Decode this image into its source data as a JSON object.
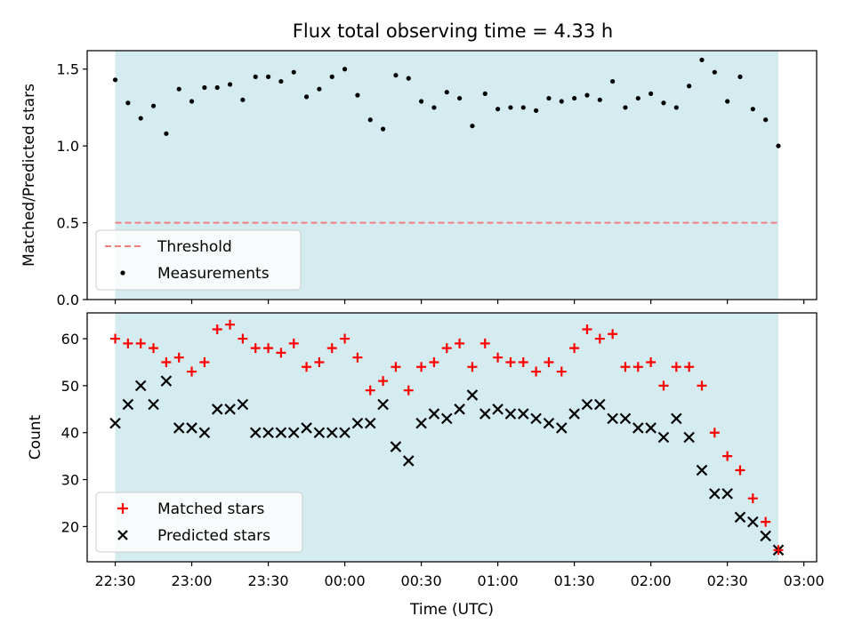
{
  "colors": {
    "shade": "#d4ebf0",
    "threshold": "#f08080",
    "measurement": "#000000",
    "matched": "#ff0000",
    "predicted": "#000000"
  },
  "chart_data": [
    {
      "type": "scatter",
      "title": "Flux total observing time = 4.33 h",
      "xlabel": "",
      "ylabel": "Matched/Predicted stars",
      "xlim": [
        "22:19",
        "03:05"
      ],
      "ylim": [
        0,
        1.62
      ],
      "yticks": [
        "0.0",
        "0.5",
        "1.0",
        "1.5"
      ],
      "shaded_x": [
        "22:30",
        "02:50"
      ],
      "legend": {
        "placement": "lower-left",
        "threshold_label": "Threshold",
        "measurements_label": "Measurements"
      },
      "threshold": {
        "name": "Threshold",
        "value": 0.5,
        "x": [
          "22:30",
          "02:50"
        ],
        "style": "dashed"
      },
      "series": [
        {
          "name": "Measurements",
          "x": [
            "22:30",
            "22:35",
            "22:40",
            "22:45",
            "22:50",
            "22:55",
            "23:00",
            "23:05",
            "23:10",
            "23:15",
            "23:20",
            "23:25",
            "23:30",
            "23:35",
            "23:40",
            "23:45",
            "23:50",
            "23:55",
            "00:00",
            "00:05",
            "00:10",
            "00:15",
            "00:20",
            "00:25",
            "00:30",
            "00:35",
            "00:40",
            "00:45",
            "00:50",
            "00:55",
            "01:00",
            "01:05",
            "01:10",
            "01:15",
            "01:20",
            "01:25",
            "01:30",
            "01:35",
            "01:40",
            "01:45",
            "01:50",
            "01:55",
            "02:00",
            "02:05",
            "02:10",
            "02:15",
            "02:20",
            "02:25",
            "02:30",
            "02:35",
            "02:40",
            "02:45",
            "02:50"
          ],
          "values": [
            1.43,
            1.28,
            1.18,
            1.26,
            1.08,
            1.37,
            1.29,
            1.38,
            1.38,
            1.4,
            1.3,
            1.45,
            1.45,
            1.42,
            1.48,
            1.32,
            1.37,
            1.45,
            1.5,
            1.33,
            1.17,
            1.11,
            1.46,
            1.44,
            1.29,
            1.25,
            1.35,
            1.31,
            1.13,
            1.34,
            1.24,
            1.25,
            1.25,
            1.23,
            1.31,
            1.29,
            1.31,
            1.33,
            1.3,
            1.42,
            1.25,
            1.31,
            1.34,
            1.28,
            1.25,
            1.39,
            1.56,
            1.48,
            1.29,
            1.45,
            1.24,
            1.17,
            1.0
          ]
        }
      ]
    },
    {
      "type": "scatter",
      "xlabel": "Time (UTC)",
      "ylabel": "Count",
      "xlim": [
        "22:19",
        "03:05"
      ],
      "ylim": [
        12.5,
        65.5
      ],
      "yticks": [
        "20",
        "30",
        "40",
        "50",
        "60"
      ],
      "xticks": [
        "22:30",
        "23:00",
        "23:30",
        "00:00",
        "00:30",
        "01:00",
        "01:30",
        "02:00",
        "02:30",
        "03:00"
      ],
      "shaded_x": [
        "22:30",
        "02:50"
      ],
      "legend": {
        "placement": "lower-left",
        "matched_label": "Matched stars",
        "predicted_label": "Predicted stars"
      },
      "x": [
        "22:30",
        "22:35",
        "22:40",
        "22:45",
        "22:50",
        "22:55",
        "23:00",
        "23:05",
        "23:10",
        "23:15",
        "23:20",
        "23:25",
        "23:30",
        "23:35",
        "23:40",
        "23:45",
        "23:50",
        "23:55",
        "00:00",
        "00:05",
        "00:10",
        "00:15",
        "00:20",
        "00:25",
        "00:30",
        "00:35",
        "00:40",
        "00:45",
        "00:50",
        "00:55",
        "01:00",
        "01:05",
        "01:10",
        "01:15",
        "01:20",
        "01:25",
        "01:30",
        "01:35",
        "01:40",
        "01:45",
        "01:50",
        "01:55",
        "02:00",
        "02:05",
        "02:10",
        "02:15",
        "02:20",
        "02:25",
        "02:30",
        "02:35",
        "02:40",
        "02:45",
        "02:50"
      ],
      "series": [
        {
          "name": "Matched stars",
          "marker": "plus",
          "values": [
            60,
            59,
            59,
            58,
            55,
            56,
            53,
            55,
            62,
            63,
            60,
            58,
            58,
            57,
            59,
            54,
            55,
            58,
            60,
            56,
            49,
            51,
            54,
            49,
            54,
            55,
            58,
            59,
            54,
            59,
            56,
            55,
            55,
            53,
            55,
            53,
            58,
            62,
            60,
            61,
            54,
            54,
            55,
            50,
            54,
            54,
            50,
            40,
            35,
            32,
            26,
            21,
            15
          ]
        },
        {
          "name": "Predicted stars",
          "marker": "x",
          "values": [
            42,
            46,
            50,
            46,
            51,
            41,
            41,
            40,
            45,
            45,
            46,
            40,
            40,
            40,
            40,
            41,
            40,
            40,
            40,
            42,
            42,
            46,
            37,
            34,
            42,
            44,
            43,
            45,
            48,
            44,
            45,
            44,
            44,
            43,
            42,
            41,
            44,
            46,
            46,
            43,
            43,
            41,
            41,
            39,
            43,
            39,
            32,
            27,
            27,
            22,
            21,
            18,
            15
          ]
        }
      ]
    }
  ]
}
